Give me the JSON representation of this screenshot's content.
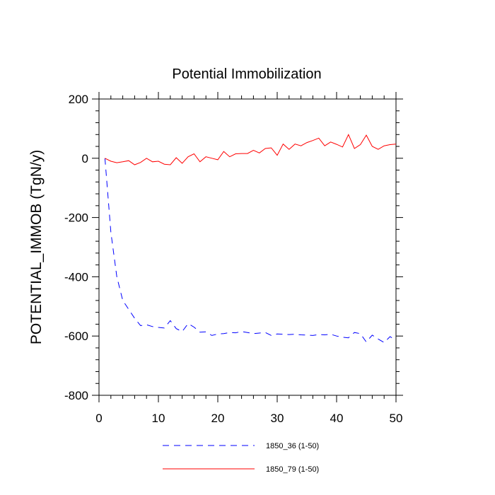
{
  "chart_data": {
    "type": "line",
    "title": "Potential Immobilization",
    "xlabel": "",
    "ylabel": "POTENTIAL_IMMOB  (TgN/y)",
    "xlim": [
      0,
      50
    ],
    "ylim": [
      -800,
      200
    ],
    "x_ticks": [
      0,
      10,
      20,
      30,
      40,
      50
    ],
    "y_ticks": [
      200,
      0,
      -200,
      -400,
      -600,
      -800
    ],
    "grid": false,
    "legend_position": "bottom",
    "x": [
      1,
      2,
      3,
      4,
      5,
      6,
      7,
      8,
      9,
      10,
      11,
      12,
      13,
      14,
      15,
      16,
      17,
      18,
      19,
      20,
      21,
      22,
      23,
      24,
      25,
      26,
      27,
      28,
      29,
      30,
      31,
      32,
      33,
      34,
      35,
      36,
      37,
      38,
      39,
      40,
      41,
      42,
      43,
      44,
      45,
      46,
      47,
      48,
      49,
      50
    ],
    "series": [
      {
        "name": "1850_36 (1-50)",
        "color": "#0000ff",
        "dash": "dashed",
        "values": [
          0,
          -250,
          -400,
          -480,
          -510,
          -540,
          -565,
          -562,
          -568,
          -571,
          -573,
          -548,
          -575,
          -585,
          -558,
          -570,
          -587,
          -586,
          -598,
          -593,
          -592,
          -588,
          -589,
          -585,
          -588,
          -592,
          -590,
          -588,
          -598,
          -593,
          -594,
          -595,
          -594,
          -596,
          -597,
          -598,
          -595,
          -596,
          -594,
          -600,
          -604,
          -606,
          -588,
          -592,
          -620,
          -597,
          -610,
          -622,
          -602,
          -615
        ]
      },
      {
        "name": "1850_79 (1-50)",
        "color": "#ff0000",
        "dash": "solid",
        "values": [
          0,
          -10,
          -15,
          -12,
          -8,
          -22,
          -14,
          0,
          -12,
          -10,
          -20,
          -22,
          2,
          -17,
          5,
          15,
          -12,
          5,
          0,
          -5,
          23,
          5,
          15,
          16,
          16,
          27,
          18,
          33,
          35,
          10,
          48,
          30,
          48,
          42,
          53,
          60,
          68,
          42,
          55,
          47,
          38,
          80,
          33,
          46,
          78,
          40,
          30,
          42,
          46,
          48
        ]
      }
    ]
  }
}
